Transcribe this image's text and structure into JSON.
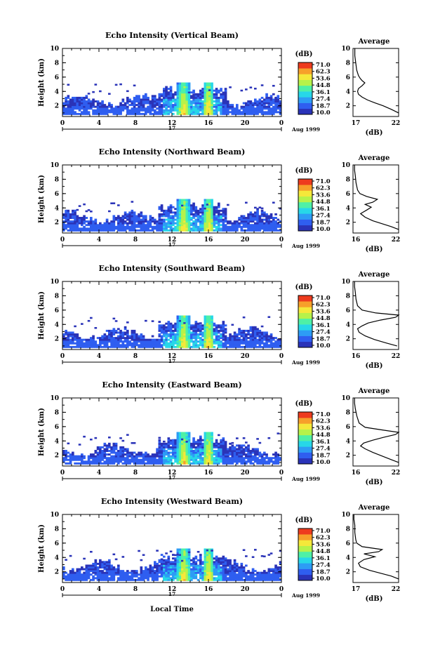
{
  "figure": {
    "xlabel_bottom": "Local Time",
    "colorbar_unit": "(dB)",
    "colorbar_ticks": [
      "71.0",
      "62.3",
      "53.6",
      "44.8",
      "36.1",
      "27.4",
      "18.7",
      "10.0"
    ],
    "colorbar_colors": [
      "#2a33b8",
      "#2f5ef0",
      "#2d9cf5",
      "#27d7e8",
      "#4ef0a6",
      "#b6f24a",
      "#f5e83a",
      "#f7a02a",
      "#ee3b1e"
    ],
    "avg_title": "Average",
    "avg_xlabel": "(dB)",
    "date_label": "17",
    "month_label": "Aug 1999",
    "height_label": "Height (km)"
  },
  "chart_data": [
    {
      "type": "heatmap",
      "title": "Echo Intensity (Vertical Beam)",
      "xlabel": "",
      "ylabel": "Height (km)",
      "xlim": [
        0,
        24
      ],
      "ylim": [
        0.5,
        10
      ],
      "xticks": [
        "0",
        "4",
        "8",
        "12",
        "16",
        "20",
        "0"
      ],
      "yticks": [
        "2",
        "4",
        "6",
        "8",
        "10"
      ],
      "zlim": [
        10.0,
        71.0
      ],
      "average": {
        "xlim": [
          17,
          22
        ],
        "xticks": [
          "17",
          "22"
        ],
        "x": [
          22.0,
          21.2,
          20.3,
          19.4,
          18.6,
          18.0,
          17.6,
          17.5,
          17.6,
          18.0,
          18.3,
          18.0,
          17.8,
          17.6,
          17.4,
          17.3,
          17.2,
          17.2
        ],
        "y": [
          1.0,
          1.5,
          2.0,
          2.4,
          2.8,
          3.2,
          3.6,
          4.0,
          4.4,
          4.8,
          5.2,
          5.5,
          5.8,
          6.2,
          7.0,
          8.0,
          9.0,
          10.0
        ]
      }
    },
    {
      "type": "heatmap",
      "title": "Echo Intensity (Northward Beam)",
      "xlabel": "",
      "ylabel": "Height (km)",
      "xlim": [
        0,
        24
      ],
      "ylim": [
        0.5,
        10
      ],
      "xticks": [
        "0",
        "4",
        "8",
        "12",
        "16",
        "20",
        "0"
      ],
      "yticks": [
        "2",
        "4",
        "6",
        "8",
        "10"
      ],
      "zlim": [
        10.0,
        71.0
      ],
      "average": {
        "xlim": [
          16,
          22
        ],
        "xticks": [
          "16",
          "22"
        ],
        "x": [
          22.0,
          21.0,
          19.8,
          18.6,
          17.6,
          17.0,
          17.8,
          18.4,
          17.6,
          18.6,
          19.2,
          17.8,
          16.9,
          16.6,
          16.4,
          16.3,
          16.2,
          16.2
        ],
        "y": [
          1.0,
          1.4,
          1.8,
          2.2,
          2.7,
          3.2,
          3.7,
          4.1,
          4.5,
          4.8,
          5.2,
          5.6,
          6.0,
          6.5,
          7.5,
          8.5,
          9.3,
          10.0
        ]
      }
    },
    {
      "type": "heatmap",
      "title": "Echo Intensity (Southward Beam)",
      "xlabel": "",
      "ylabel": "Height (km)",
      "xlim": [
        0,
        24
      ],
      "ylim": [
        0.5,
        10
      ],
      "xticks": [
        "0",
        "4",
        "8",
        "12",
        "16",
        "20",
        "0"
      ],
      "yticks": [
        "2",
        "4",
        "6",
        "8",
        "10"
      ],
      "zlim": [
        10.0,
        71.0
      ],
      "average": {
        "xlim": [
          16,
          22
        ],
        "xticks": [
          "16",
          "22"
        ],
        "x": [
          21.8,
          20.4,
          18.8,
          17.6,
          16.8,
          16.6,
          17.2,
          18.0,
          19.6,
          21.6,
          22.0,
          19.0,
          17.2,
          16.6,
          16.4,
          16.3,
          16.2,
          16.2
        ],
        "y": [
          1.0,
          1.4,
          1.9,
          2.4,
          2.9,
          3.4,
          3.8,
          4.2,
          4.6,
          5.0,
          5.3,
          5.6,
          6.0,
          6.6,
          7.5,
          8.5,
          9.3,
          10.0
        ]
      }
    },
    {
      "type": "heatmap",
      "title": "Echo Intensity (Eastward Beam)",
      "xlabel": "",
      "ylabel": "Height (km)",
      "xlim": [
        0,
        24
      ],
      "ylim": [
        0.5,
        10
      ],
      "xticks": [
        "0",
        "4",
        "8",
        "12",
        "16",
        "20",
        "0"
      ],
      "yticks": [
        "2",
        "4",
        "6",
        "8",
        "10"
      ],
      "zlim": [
        10.0,
        71.0
      ],
      "average": {
        "xlim": [
          16,
          22
        ],
        "xticks": [
          "16",
          "22"
        ],
        "x": [
          22.0,
          21.0,
          19.8,
          18.6,
          17.6,
          17.0,
          17.4,
          18.6,
          20.0,
          21.6,
          22.0,
          20.0,
          17.6,
          16.8,
          16.5,
          16.3,
          16.2,
          16.2
        ],
        "y": [
          1.0,
          1.4,
          1.9,
          2.4,
          2.9,
          3.3,
          3.7,
          4.1,
          4.5,
          4.9,
          5.2,
          5.5,
          5.9,
          6.5,
          7.5,
          8.5,
          9.3,
          10.0
        ]
      }
    },
    {
      "type": "heatmap",
      "title": "Echo Intensity (Westward Beam)",
      "xlabel": "Local Time",
      "ylabel": "Height (km)",
      "xlim": [
        0,
        24
      ],
      "ylim": [
        0.5,
        10
      ],
      "xticks": [
        "0",
        "4",
        "8",
        "12",
        "16",
        "20",
        "0"
      ],
      "yticks": [
        "2",
        "4",
        "6",
        "8",
        "10"
      ],
      "zlim": [
        10.0,
        71.0
      ],
      "average": {
        "xlim": [
          17,
          22
        ],
        "xticks": [
          "17",
          "22"
        ],
        "x": [
          22.0,
          21.2,
          20.0,
          18.8,
          17.8,
          17.6,
          18.2,
          19.4,
          18.2,
          19.8,
          20.2,
          18.0,
          17.4,
          17.3,
          17.2,
          17.2,
          17.1,
          17.1
        ],
        "y": [
          1.0,
          1.4,
          1.8,
          2.2,
          2.7,
          3.2,
          3.7,
          4.1,
          4.5,
          4.8,
          5.1,
          5.5,
          6.0,
          6.5,
          7.5,
          8.5,
          9.3,
          10.0
        ]
      }
    }
  ]
}
